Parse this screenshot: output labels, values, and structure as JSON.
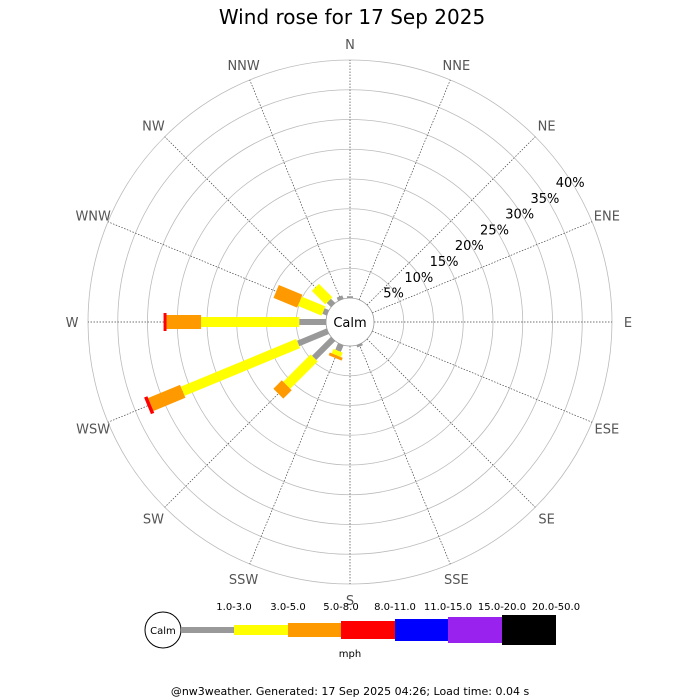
{
  "chart_data": {
    "type": "wind-rose",
    "title": "Wind rose for 17 Sep 2025",
    "directions": [
      "N",
      "NNE",
      "NE",
      "ENE",
      "E",
      "ESE",
      "SE",
      "SSE",
      "S",
      "SSW",
      "SW",
      "WSW",
      "W",
      "WNW",
      "NW",
      "NNW"
    ],
    "rings_percent": [
      5,
      10,
      15,
      20,
      25,
      30,
      35,
      40
    ],
    "rmax_percent": 40,
    "center_label": "Calm",
    "speed_bins": [
      {
        "label": "1.0-3.0",
        "color": "#999999"
      },
      {
        "label": "3.0-5.0",
        "color": "#ffff00"
      },
      {
        "label": "5.0-8.0",
        "color": "#ff9900"
      },
      {
        "label": "8.0-11.0",
        "color": "#ff0000"
      },
      {
        "label": "11.0-15.0",
        "color": "#0000ff"
      },
      {
        "label": "15.0-20.0",
        "color": "#9922ee"
      },
      {
        "label": "20.0-50.0",
        "color": "#000000"
      }
    ],
    "units": "mph",
    "series": [
      {
        "direction": "N",
        "values": [
          0.3,
          0,
          0,
          0,
          0,
          0,
          0
        ]
      },
      {
        "direction": "NNE",
        "values": [
          0,
          0,
          0,
          0,
          0,
          0,
          0
        ]
      },
      {
        "direction": "NE",
        "values": [
          0,
          0,
          0,
          0,
          0,
          0,
          0
        ]
      },
      {
        "direction": "ENE",
        "values": [
          0,
          0,
          0,
          0,
          0,
          0,
          0
        ]
      },
      {
        "direction": "E",
        "values": [
          0,
          0,
          0,
          0,
          0,
          0,
          0
        ]
      },
      {
        "direction": "ESE",
        "values": [
          0,
          0,
          0,
          0,
          0,
          0,
          0
        ]
      },
      {
        "direction": "SE",
        "values": [
          0,
          0,
          0,
          0,
          0,
          0,
          0
        ]
      },
      {
        "direction": "SSE",
        "values": [
          0.4,
          0,
          0,
          0,
          0,
          0,
          0
        ]
      },
      {
        "direction": "S",
        "values": [
          0,
          0,
          0,
          0,
          0,
          0,
          0
        ]
      },
      {
        "direction": "SSW",
        "values": [
          1.2,
          0.8,
          0.5,
          0,
          0,
          0,
          0
        ]
      },
      {
        "direction": "SW",
        "values": [
          4.5,
          6.5,
          2.0,
          0,
          0,
          0,
          0
        ]
      },
      {
        "direction": "WSW",
        "values": [
          5.4,
          21.0,
          5.8,
          0.6,
          0,
          0,
          0
        ]
      },
      {
        "direction": "W",
        "values": [
          4.5,
          16.5,
          5.8,
          0.5,
          0,
          0,
          0
        ]
      },
      {
        "direction": "WNW",
        "values": [
          0.8,
          4.3,
          4.3,
          0,
          0,
          0,
          0
        ]
      },
      {
        "direction": "NW",
        "values": [
          1.0,
          3.2,
          0,
          0,
          0,
          0,
          0
        ]
      },
      {
        "direction": "NNW",
        "values": [
          0.6,
          0,
          0,
          0,
          0,
          0,
          0
        ]
      }
    ]
  },
  "footer": "@nw3weather. Generated: 17 Sep 2025 04:26; Load time: 0.04 s"
}
